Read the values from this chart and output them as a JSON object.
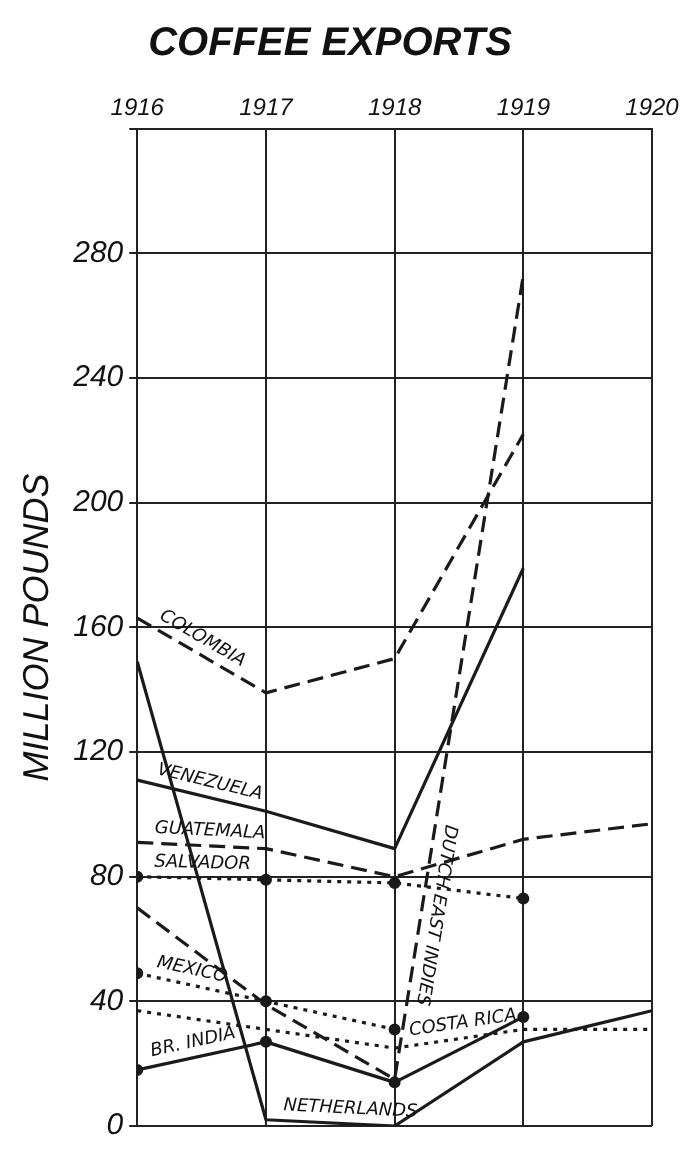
{
  "chart_data": {
    "type": "line",
    "title": "COFFEE EXPORTS",
    "ylabel": "MILLION POUNDS",
    "xlim": [
      1916,
      1920
    ],
    "xticks": [
      1916,
      1917,
      1918,
      1919,
      1920
    ],
    "ylim": [
      0,
      320
    ],
    "yticks": [
      0,
      40,
      80,
      120,
      160,
      200,
      240,
      280,
      {
        "value": 320,
        "label": null
      }
    ],
    "grid": true,
    "legend": false,
    "series": [
      {
        "name": "COLOMBIA",
        "color": "#1a1a1a",
        "line_style": "dashed",
        "marker": "none",
        "x": [
          1916,
          1917,
          1918,
          1919
        ],
        "values": [
          163,
          139,
          150,
          222
        ]
      },
      {
        "name": "DUTCH EAST INDIES",
        "color": "#1a1a1a",
        "line_style": "dashed",
        "marker": "none",
        "x": [
          1916,
          1917,
          1918,
          1919
        ],
        "values": [
          70,
          39,
          15,
          273
        ]
      },
      {
        "name": "VENEZUELA",
        "color": "#1a1a1a",
        "line_style": "solid",
        "marker": "none",
        "x": [
          1916,
          1917,
          1918,
          1919
        ],
        "values": [
          111,
          101,
          89,
          179
        ]
      },
      {
        "name": "GUATEMALA",
        "color": "#1a1a1a",
        "line_style": "dashed",
        "marker": "none",
        "x": [
          1916,
          1917,
          1918,
          1919,
          1920
        ],
        "values": [
          91,
          89,
          80,
          92,
          97
        ]
      },
      {
        "name": "SALVADOR",
        "color": "#1a1a1a",
        "line_style": "dotted",
        "marker": "circle",
        "x": [
          1916,
          1917,
          1918,
          1919
        ],
        "values": [
          80,
          79,
          78,
          73
        ]
      },
      {
        "name": "MEXICO",
        "color": "#1a1a1a",
        "line_style": "dotted",
        "marker": "circle",
        "x": [
          1916,
          1917,
          1918
        ],
        "values": [
          49,
          40,
          31
        ]
      },
      {
        "name": "BR. INDIA",
        "color": "#1a1a1a",
        "line_style": "solid",
        "marker": "circle",
        "x": [
          1916,
          1917,
          1918,
          1919
        ],
        "values": [
          18,
          27,
          14,
          35
        ]
      },
      {
        "name": "NETHERLANDS",
        "color": "#1a1a1a",
        "line_style": "solid",
        "marker": "none",
        "x": [
          1916,
          1917,
          1918,
          1919,
          1920
        ],
        "values": [
          149,
          2,
          0,
          27,
          37
        ]
      },
      {
        "name": "COSTA RICA",
        "color": "#1a1a1a",
        "line_style": "dotted",
        "marker": "none",
        "x": [
          1916,
          1917,
          1918,
          1919,
          1920
        ],
        "values": [
          37,
          31,
          25,
          31,
          31
        ]
      }
    ]
  }
}
